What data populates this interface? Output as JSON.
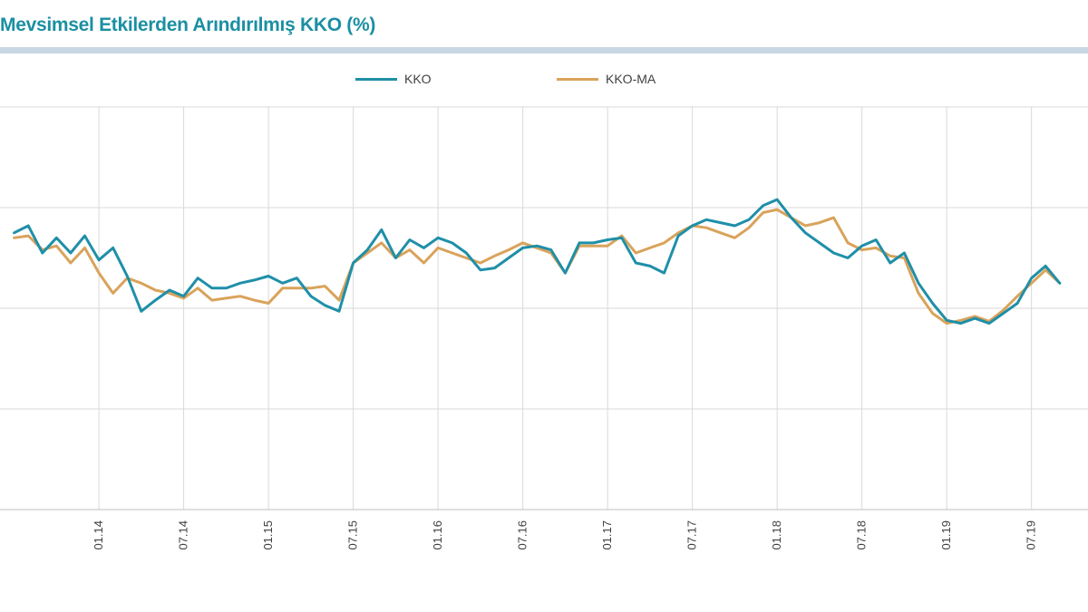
{
  "chart_data": {
    "type": "line",
    "title": "Mevsimsel Etkilerden Arındırılmış KKO (%)",
    "xlabel": "",
    "ylabel": "",
    "grid": true,
    "legend_position": "top-center",
    "x_ticks": [
      "01.14",
      "07.14",
      "01.15",
      "07.15",
      "01.16",
      "07.16",
      "01.17",
      "07.17",
      "01.18",
      "07.18",
      "01.19",
      "07.19"
    ],
    "x_range": [
      -1,
      76
    ],
    "ylim": [
      0,
      4
    ],
    "series": [
      {
        "name": "KKO",
        "color": "#1f8fa8",
        "values": [
          2.75,
          2.82,
          2.55,
          2.7,
          2.55,
          2.72,
          2.48,
          2.6,
          2.32,
          1.97,
          2.08,
          2.18,
          2.12,
          2.3,
          2.2,
          2.2,
          2.25,
          2.28,
          2.32,
          2.25,
          2.3,
          2.12,
          2.03,
          1.97,
          2.45,
          2.58,
          2.78,
          2.5,
          2.68,
          2.6,
          2.7,
          2.65,
          2.55,
          2.38,
          2.4,
          2.5,
          2.6,
          2.62,
          2.58,
          2.35,
          2.65,
          2.65,
          2.68,
          2.7,
          2.45,
          2.42,
          2.35,
          2.72,
          2.82,
          2.88,
          2.85,
          2.82,
          2.88,
          3.02,
          3.08,
          2.9,
          2.75,
          2.65,
          2.55,
          2.5,
          2.62,
          2.68,
          2.45,
          2.55,
          2.25,
          2.05,
          1.88,
          1.85,
          1.9,
          1.85,
          1.95,
          2.05,
          2.3,
          2.42,
          2.25
        ]
      },
      {
        "name": "KKO-MA",
        "color": "#d9a35b",
        "values": [
          2.7,
          2.72,
          2.58,
          2.62,
          2.45,
          2.6,
          2.35,
          2.15,
          2.3,
          2.25,
          2.18,
          2.15,
          2.1,
          2.2,
          2.08,
          2.1,
          2.12,
          2.08,
          2.05,
          2.2,
          2.2,
          2.2,
          2.22,
          2.08,
          2.45,
          2.55,
          2.65,
          2.5,
          2.58,
          2.45,
          2.6,
          2.55,
          2.5,
          2.45,
          2.52,
          2.58,
          2.65,
          2.6,
          2.55,
          2.35,
          2.62,
          2.62,
          2.62,
          2.72,
          2.55,
          2.6,
          2.65,
          2.75,
          2.82,
          2.8,
          2.75,
          2.7,
          2.8,
          2.95,
          2.98,
          2.9,
          2.82,
          2.85,
          2.9,
          2.65,
          2.58,
          2.6,
          2.52,
          2.5,
          2.15,
          1.95,
          1.85,
          1.88,
          1.92,
          1.87,
          1.98,
          2.12,
          2.25,
          2.38,
          2.25
        ]
      }
    ]
  }
}
